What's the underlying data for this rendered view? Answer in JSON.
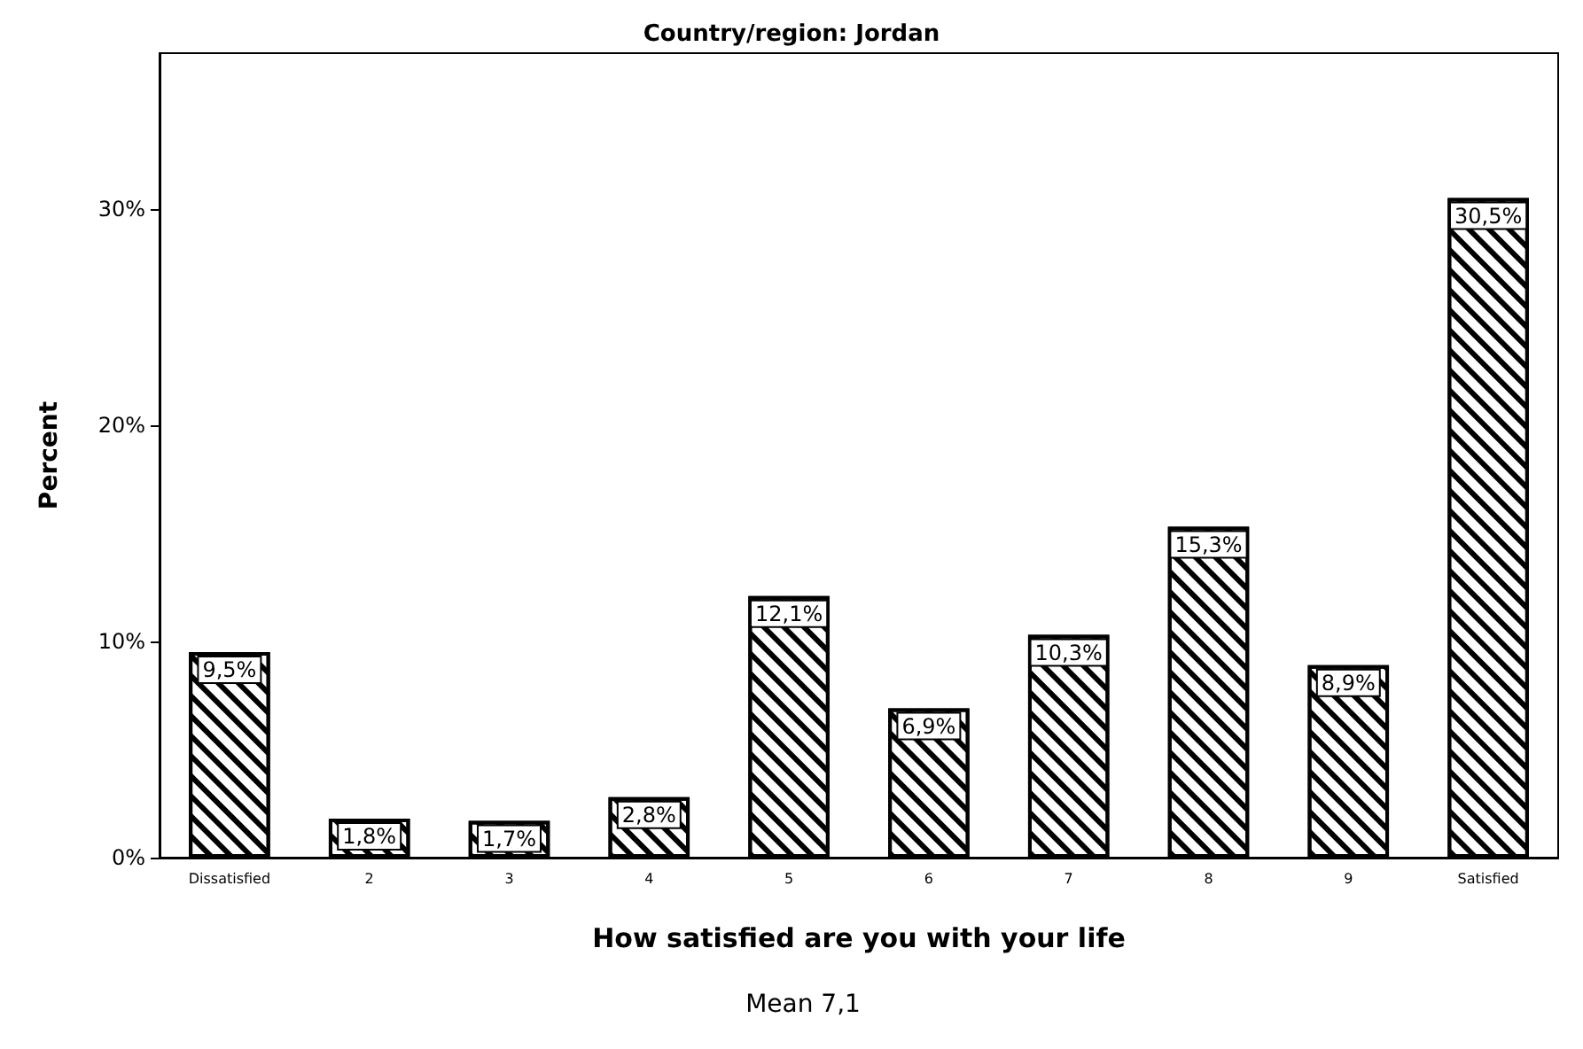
{
  "chart_data": {
    "type": "bar",
    "title": "Country/region: Jordan",
    "xlabel": "How satisfied are you with your life",
    "ylabel": "Percent",
    "categories": [
      "Dissatisfied",
      "2",
      "3",
      "4",
      "5",
      "6",
      "7",
      "8",
      "9",
      "Satisfied"
    ],
    "values": [
      9.5,
      1.8,
      1.7,
      2.8,
      12.1,
      6.9,
      10.3,
      15.3,
      8.9,
      30.5
    ],
    "value_labels": [
      "9,5%",
      "1,8%",
      "1,7%",
      "2,8%",
      "12,1%",
      "6,9%",
      "10,3%",
      "15,3%",
      "8,9%",
      "30,5%"
    ],
    "color": "#ffffff",
    "ylim": [
      0,
      37.2
    ],
    "yticks": [
      {
        "value": 0,
        "label": "0%"
      },
      {
        "value": 10,
        "label": "10%"
      },
      {
        "value": 20,
        "label": "20%"
      },
      {
        "value": 30,
        "label": "30%"
      }
    ],
    "grid": false,
    "annotations": [
      "Mean 7,1"
    ]
  }
}
